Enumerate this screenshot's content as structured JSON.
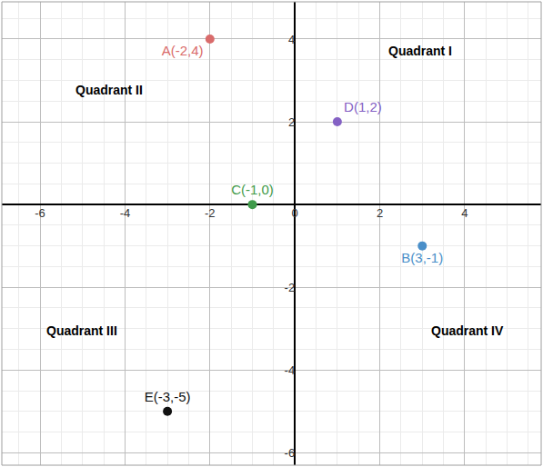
{
  "chart_data": {
    "type": "scatter",
    "x": [
      -2,
      3,
      -1,
      1,
      -3
    ],
    "values": [
      4,
      -1,
      0,
      2,
      -5
    ],
    "labels": [
      "A(-2,4)",
      "B(3,-1)",
      "C(-1,0)",
      "D(1,2)",
      "E(-3,-5)"
    ],
    "colors": [
      "#d96b6b",
      "#4a8fc9",
      "#3f9a4a",
      "#8461c4",
      "#111111"
    ],
    "marker": "circle",
    "xlim": [
      -6.9,
      5.8
    ],
    "ylim": [
      -6.3,
      4.9
    ],
    "xticks": [
      -6,
      -4,
      -2,
      0,
      2,
      4
    ],
    "yticks": [
      -6,
      -4,
      -2,
      2,
      4
    ],
    "grid": true,
    "annotations": [
      {
        "text": "Quadrant I",
        "x": 2.96,
        "y": 3.72
      },
      {
        "text": "Quadrant II",
        "x": -4.37,
        "y": 2.76
      },
      {
        "text": "Quadrant III",
        "x": -5.02,
        "y": -3.06
      },
      {
        "text": "Quadrant IV",
        "x": 4.07,
        "y": -3.06
      }
    ]
  }
}
